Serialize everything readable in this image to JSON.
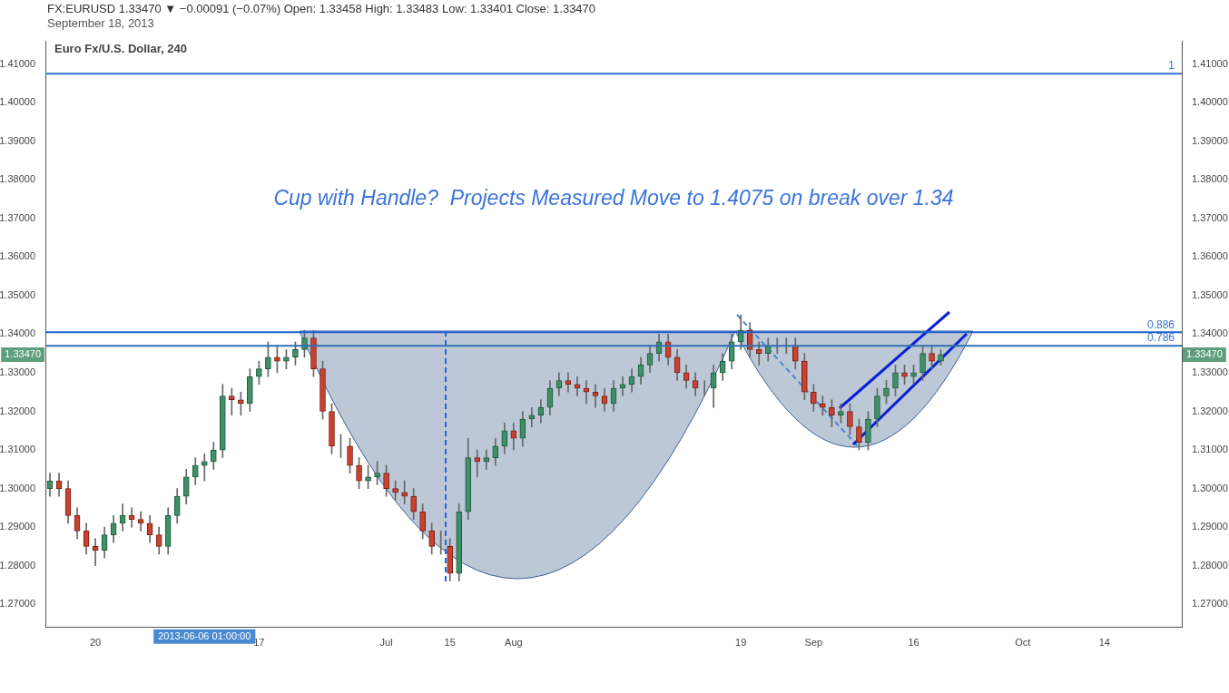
{
  "chart_data": {
    "type": "candlestick",
    "title": "FX:EURUSD 1.33470 ▼ −0.00091 (−0.07%)  Open: 1.33458  High: 1.33483  Low: 1.33401  Close: 1.33470",
    "subtitle": "September 18, 2013",
    "categories": [
      null,
      null,
      null,
      null,
      null,
      "20",
      null,
      null,
      null,
      null,
      null,
      null,
      null,
      null,
      null,
      null,
      null,
      null,
      null,
      null,
      null,
      null,
      null,
      "17",
      null,
      null,
      null,
      null,
      null,
      null,
      null,
      null,
      null,
      null,
      null,
      null,
      null,
      "Jul",
      null,
      null,
      null,
      null,
      null,
      null,
      "15",
      null,
      null,
      null,
      null,
      null,
      null,
      "Aug",
      null,
      null,
      null,
      null,
      null,
      null,
      null,
      null,
      null,
      null,
      null,
      null,
      null,
      null,
      null,
      null,
      null,
      null,
      null,
      null,
      null,
      null,
      null,
      null,
      "19",
      null,
      null,
      null,
      null,
      null,
      null,
      null,
      "Sep",
      null,
      null,
      null,
      null,
      null,
      null,
      null,
      null,
      null,
      null,
      "16",
      null,
      null,
      null,
      null,
      null,
      null,
      null,
      null,
      null,
      null,
      null,
      "Oct",
      null,
      null,
      null,
      null,
      null,
      null,
      null,
      null,
      "14",
      null,
      null,
      null,
      null,
      null,
      null,
      null,
      null
    ],
    "ohlc": [
      [
        1.3,
        1.304,
        1.298,
        1.302
      ],
      [
        1.302,
        1.304,
        1.298,
        1.3
      ],
      [
        1.3,
        1.302,
        1.291,
        1.293
      ],
      [
        1.293,
        1.295,
        1.287,
        1.289
      ],
      [
        1.289,
        1.291,
        1.283,
        1.285
      ],
      [
        1.285,
        1.287,
        1.28,
        1.284
      ],
      [
        1.284,
        1.29,
        1.282,
        1.288
      ],
      [
        1.288,
        1.293,
        1.286,
        1.291
      ],
      [
        1.291,
        1.296,
        1.289,
        1.293
      ],
      [
        1.293,
        1.295,
        1.29,
        1.292
      ],
      [
        1.292,
        1.294,
        1.289,
        1.291
      ],
      [
        1.291,
        1.293,
        1.286,
        1.288
      ],
      [
        1.288,
        1.29,
        1.283,
        1.285
      ],
      [
        1.285,
        1.295,
        1.283,
        1.293
      ],
      [
        1.293,
        1.3,
        1.291,
        1.298
      ],
      [
        1.298,
        1.305,
        1.296,
        1.303
      ],
      [
        1.303,
        1.308,
        1.301,
        1.306
      ],
      [
        1.306,
        1.309,
        1.302,
        1.307
      ],
      [
        1.307,
        1.312,
        1.305,
        1.31
      ],
      [
        1.31,
        1.327,
        1.308,
        1.324
      ],
      [
        1.324,
        1.326,
        1.319,
        1.323
      ],
      [
        1.323,
        1.325,
        1.319,
        1.322
      ],
      [
        1.322,
        1.331,
        1.32,
        1.329
      ],
      [
        1.329,
        1.333,
        1.327,
        1.331
      ],
      [
        1.331,
        1.338,
        1.329,
        1.334
      ],
      [
        1.334,
        1.337,
        1.33,
        1.333
      ],
      [
        1.333,
        1.336,
        1.331,
        1.334
      ],
      [
        1.334,
        1.338,
        1.332,
        1.336
      ],
      [
        1.336,
        1.341,
        1.334,
        1.339
      ],
      [
        1.339,
        1.341,
        1.329,
        1.331
      ],
      [
        1.331,
        1.333,
        1.318,
        1.32
      ],
      [
        1.32,
        1.322,
        1.309,
        1.311
      ],
      [
        1.311,
        1.314,
        1.308,
        1.311
      ],
      [
        1.311,
        1.313,
        1.304,
        1.306
      ],
      [
        1.306,
        1.308,
        1.3,
        1.302
      ],
      [
        1.302,
        1.306,
        1.3,
        1.303
      ],
      [
        1.303,
        1.307,
        1.301,
        1.304
      ],
      [
        1.304,
        1.306,
        1.298,
        1.3
      ],
      [
        1.3,
        1.302,
        1.297,
        1.299
      ],
      [
        1.299,
        1.302,
        1.296,
        1.298
      ],
      [
        1.298,
        1.3,
        1.292,
        1.294
      ],
      [
        1.294,
        1.296,
        1.287,
        1.289
      ],
      [
        1.289,
        1.291,
        1.283,
        1.285
      ],
      [
        1.285,
        1.289,
        1.283,
        1.285
      ],
      [
        1.285,
        1.287,
        1.276,
        1.278
      ],
      [
        1.278,
        1.296,
        1.276,
        1.294
      ],
      [
        1.294,
        1.313,
        1.292,
        1.308
      ],
      [
        1.308,
        1.31,
        1.303,
        1.307
      ],
      [
        1.307,
        1.31,
        1.305,
        1.308
      ],
      [
        1.308,
        1.313,
        1.306,
        1.311
      ],
      [
        1.311,
        1.317,
        1.309,
        1.315
      ],
      [
        1.315,
        1.317,
        1.31,
        1.313
      ],
      [
        1.313,
        1.32,
        1.311,
        1.318
      ],
      [
        1.318,
        1.321,
        1.316,
        1.319
      ],
      [
        1.319,
        1.323,
        1.317,
        1.321
      ],
      [
        1.321,
        1.328,
        1.319,
        1.326
      ],
      [
        1.326,
        1.33,
        1.324,
        1.328
      ],
      [
        1.328,
        1.33,
        1.325,
        1.327
      ],
      [
        1.327,
        1.329,
        1.324,
        1.326
      ],
      [
        1.326,
        1.328,
        1.322,
        1.325
      ],
      [
        1.325,
        1.327,
        1.321,
        1.324
      ],
      [
        1.324,
        1.326,
        1.32,
        1.322
      ],
      [
        1.322,
        1.328,
        1.32,
        1.326
      ],
      [
        1.326,
        1.329,
        1.324,
        1.327
      ],
      [
        1.327,
        1.331,
        1.325,
        1.329
      ],
      [
        1.329,
        1.334,
        1.327,
        1.332
      ],
      [
        1.332,
        1.337,
        1.33,
        1.335
      ],
      [
        1.335,
        1.34,
        1.333,
        1.338
      ],
      [
        1.338,
        1.34,
        1.332,
        1.334
      ],
      [
        1.334,
        1.336,
        1.328,
        1.33
      ],
      [
        1.33,
        1.332,
        1.326,
        1.328
      ],
      [
        1.328,
        1.33,
        1.324,
        1.326
      ],
      [
        1.326,
        1.328,
        1.324,
        1.326
      ],
      [
        1.326,
        1.332,
        1.321,
        1.33
      ],
      [
        1.33,
        1.335,
        1.328,
        1.333
      ],
      [
        1.333,
        1.34,
        1.331,
        1.338
      ],
      [
        1.338,
        1.345,
        1.336,
        1.341
      ],
      [
        1.341,
        1.343,
        1.334,
        1.336
      ],
      [
        1.336,
        1.338,
        1.332,
        1.335
      ],
      [
        1.335,
        1.339,
        1.333,
        1.337
      ],
      [
        1.337,
        1.339,
        1.335,
        1.337
      ],
      [
        1.337,
        1.339,
        1.335,
        1.337
      ],
      [
        1.337,
        1.339,
        1.331,
        1.333
      ],
      [
        1.333,
        1.335,
        1.323,
        1.325
      ],
      [
        1.325,
        1.327,
        1.32,
        1.322
      ],
      [
        1.322,
        1.324,
        1.319,
        1.321
      ],
      [
        1.321,
        1.323,
        1.316,
        1.319
      ],
      [
        1.319,
        1.322,
        1.317,
        1.32
      ],
      [
        1.32,
        1.322,
        1.314,
        1.316
      ],
      [
        1.316,
        1.318,
        1.31,
        1.312
      ],
      [
        1.312,
        1.32,
        1.31,
        1.318
      ],
      [
        1.318,
        1.326,
        1.316,
        1.324
      ],
      [
        1.324,
        1.328,
        1.322,
        1.326
      ],
      [
        1.326,
        1.332,
        1.324,
        1.33
      ],
      [
        1.33,
        1.332,
        1.327,
        1.329
      ],
      [
        1.329,
        1.332,
        1.327,
        1.33
      ],
      [
        1.33,
        1.337,
        1.328,
        1.335
      ],
      [
        1.335,
        1.337,
        1.331,
        1.333
      ],
      [
        1.333,
        1.336,
        1.332,
        1.3347
      ],
      null,
      null,
      null,
      null,
      null,
      null,
      null,
      null,
      null,
      null,
      null,
      null,
      null,
      null,
      null,
      null,
      null,
      null,
      null,
      null,
      null,
      null,
      null,
      null,
      null,
      null
    ],
    "ylim": [
      1.264,
      1.416
    ],
    "yticks": [
      {
        "value": 1.27,
        "label": "1.27000"
      },
      {
        "value": 1.28,
        "label": "1.28000"
      },
      {
        "value": 1.29,
        "label": "1.29000"
      },
      {
        "value": 1.3,
        "label": "1.30000"
      },
      {
        "value": 1.31,
        "label": "1.31000"
      },
      {
        "value": 1.32,
        "label": "1.32000"
      },
      {
        "value": 1.33,
        "label": "1.33000"
      },
      {
        "value": 1.34,
        "label": "1.34000"
      },
      {
        "value": 1.35,
        "label": "1.35000"
      },
      {
        "value": 1.36,
        "label": "1.36000"
      },
      {
        "value": 1.37,
        "label": "1.37000"
      },
      {
        "value": 1.38,
        "label": "1.38000"
      },
      {
        "value": 1.39,
        "label": "1.39000"
      },
      {
        "value": 1.4,
        "label": "1.40000"
      },
      {
        "value": 1.41,
        "label": "1.41000"
      }
    ],
    "y2lim": [
      1.264,
      1.416
    ],
    "y2ticks": [
      {
        "value": 1.27,
        "label": "1.27000"
      },
      {
        "value": 1.28,
        "label": "1.28000"
      },
      {
        "value": 1.29,
        "label": "1.29000"
      },
      {
        "value": 1.3,
        "label": "1.30000"
      },
      {
        "value": 1.31,
        "label": "1.31000"
      },
      {
        "value": 1.32,
        "label": "1.32000"
      },
      {
        "value": 1.33,
        "label": "1.33000"
      },
      {
        "value": 1.34,
        "label": "1.34000"
      },
      {
        "value": 1.35,
        "label": "1.35000"
      },
      {
        "value": 1.36,
        "label": "1.36000"
      },
      {
        "value": 1.37,
        "label": "1.37000"
      },
      {
        "value": 1.38,
        "label": "1.38000"
      },
      {
        "value": 1.39,
        "label": "1.39000"
      },
      {
        "value": 1.4,
        "label": "1.40000"
      },
      {
        "value": 1.41,
        "label": "1.41000"
      }
    ],
    "ref_lines": [
      {
        "axis": "y",
        "value": 1.4075,
        "color": "#3b6fd0"
      },
      {
        "axis": "y",
        "value": 1.3405,
        "color": "#1f5fd0"
      },
      {
        "axis": "y",
        "value": 1.337,
        "color": "#2f6fb0"
      }
    ],
    "annotations": [
      "Euro Fx/U.S. Dollar, 240",
      "Cup with Handle?  Projects Measured Move to 1.4075 on break over 1.34",
      "2013-06-06 01:00:00",
      "1.33470",
      {
        "text": "1",
        "y": 1.4075
      },
      {
        "text": "0.886",
        "y": 1.3405
      },
      {
        "text": "0.786",
        "y": 1.337
      }
    ],
    "grid": false,
    "legend": false
  }
}
